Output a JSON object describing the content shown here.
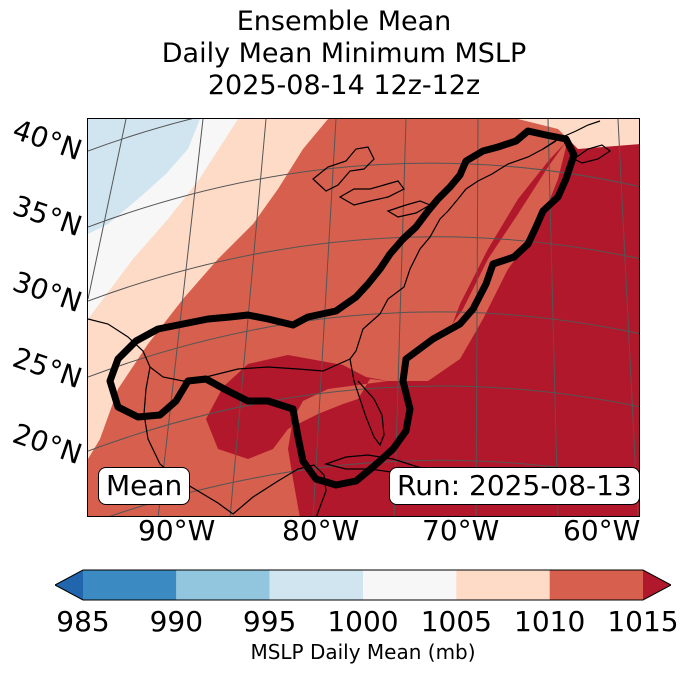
{
  "title": {
    "line1": "Ensemble Mean",
    "line2": "Daily Mean Minimum MSLP",
    "line3": "2025-08-14 12z-12z"
  },
  "map": {
    "variable": "Ensemble mean minimum mean sea level pressure",
    "lat_labels": [
      "40°N",
      "35°N",
      "30°N",
      "25°N",
      "20°N"
    ],
    "lon_labels": [
      "90°W",
      "80°W",
      "70°W",
      "60°W"
    ],
    "contour_description": "Thick black contour enclosing the U.S. East Coast, Bahamas, Gulf of Mexico and Yucatan",
    "contour_color": "#000000",
    "land_outline_color": "#000000",
    "gridline_color": "#555555",
    "mean_box": "Mean",
    "run_box": "Run: 2025-08-13"
  },
  "colorbar": {
    "label": "MSLP Daily Mean (mb)",
    "bins": [
      {
        "lo": 985,
        "hi": 990,
        "color": "#3b8bc2"
      },
      {
        "lo": 990,
        "hi": 995,
        "color": "#92c5de"
      },
      {
        "lo": 995,
        "hi": 1000,
        "color": "#d1e5f0"
      },
      {
        "lo": 1000,
        "hi": 1005,
        "color": "#f7f7f7"
      },
      {
        "lo": 1005,
        "hi": 1010,
        "color": "#fddbc7"
      },
      {
        "lo": 1010,
        "hi": 1015,
        "color": "#d6604d"
      }
    ],
    "under_color": "#2166ac",
    "over_color": "#b2182b",
    "ticks": [
      "985",
      "990",
      "995",
      "1000",
      "1005",
      "1010",
      "1015"
    ]
  }
}
